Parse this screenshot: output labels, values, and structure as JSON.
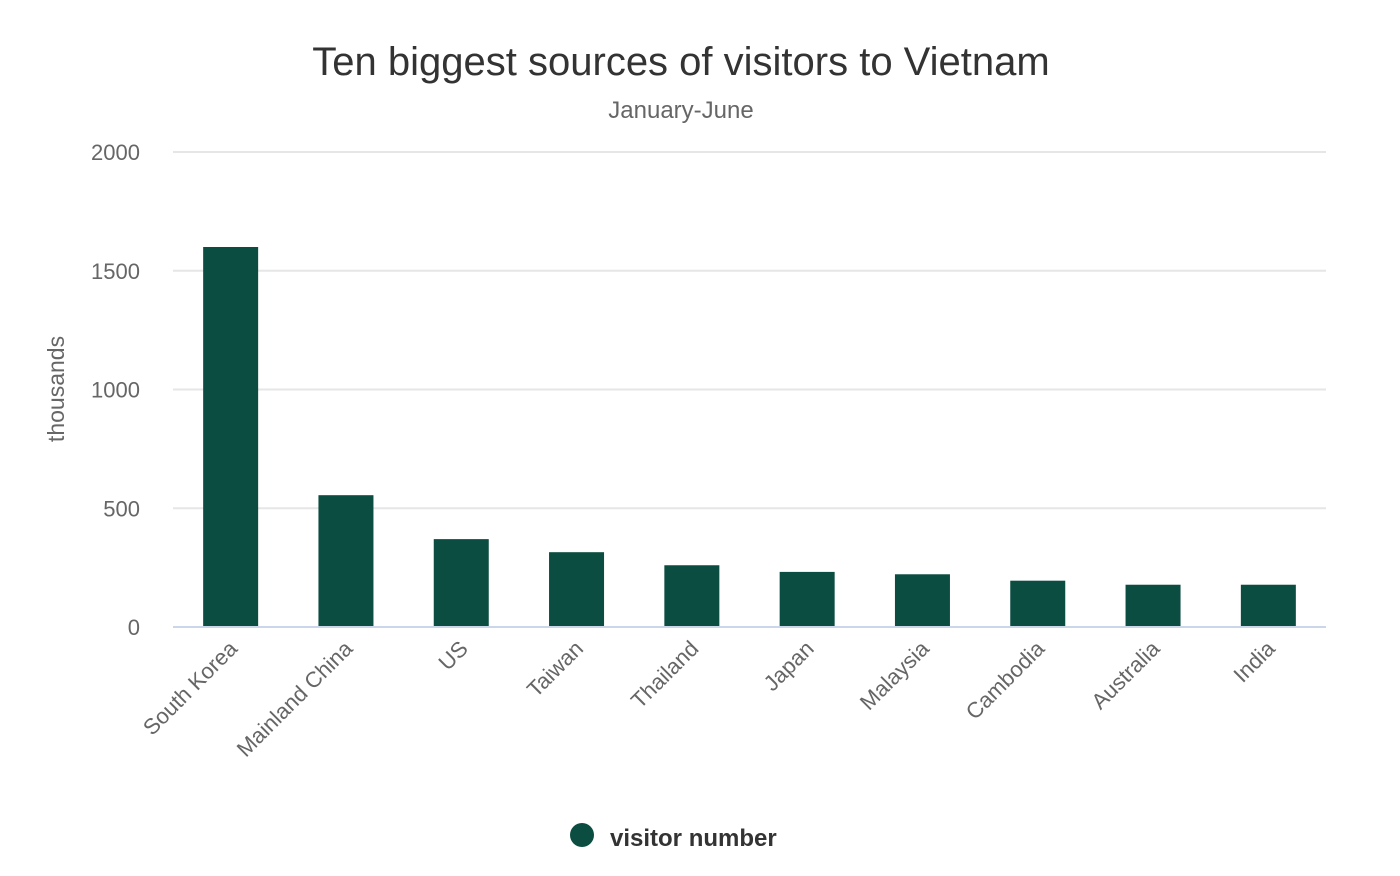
{
  "chart_data": {
    "type": "bar",
    "title": "Ten biggest sources of visitors to Vietnam",
    "subtitle": "January-June",
    "ylabel": "thousands",
    "xlabel": "",
    "categories": [
      "South Korea",
      "Mainland China",
      "US",
      "Taiwan",
      "Thailand",
      "Japan",
      "Malaysia",
      "Cambodia",
      "Australia",
      "India"
    ],
    "series": [
      {
        "name": "visitor number",
        "color": "#0b4d40",
        "values": [
          1600,
          555,
          370,
          315,
          260,
          232,
          222,
          195,
          178,
          178
        ]
      }
    ],
    "ylim": [
      0,
      2000
    ],
    "yticks": [
      0,
      500,
      1000,
      1500,
      2000
    ],
    "grid": true,
    "legend": "bottom-center"
  }
}
